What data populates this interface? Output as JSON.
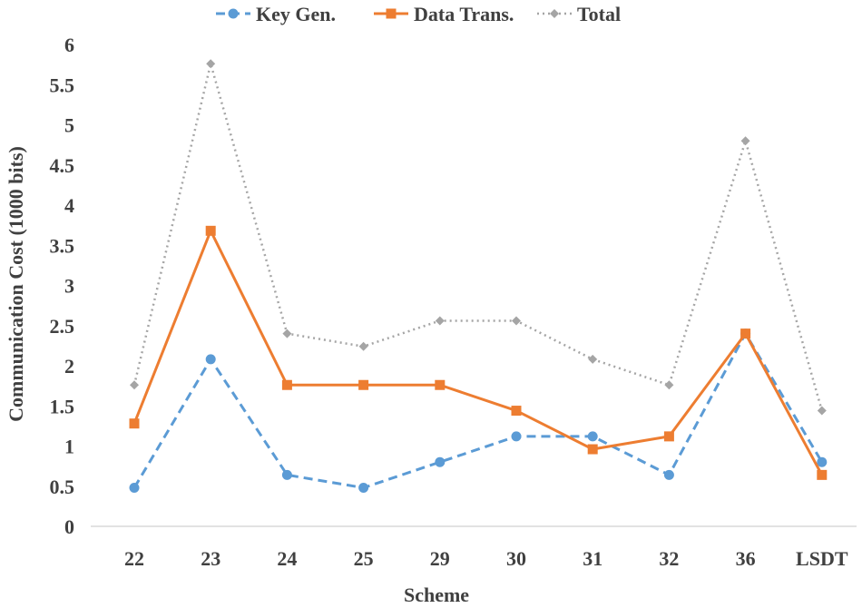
{
  "chart_data": {
    "type": "line",
    "xlabel": "Scheme",
    "ylabel": "Communication Cost (1000 bits)",
    "categories": [
      "22",
      "23",
      "24",
      "25",
      "29",
      "30",
      "31",
      "32",
      "36",
      "LSDT"
    ],
    "ylim": [
      0,
      6
    ],
    "yticks": [
      "0",
      "0.5",
      "1",
      "1.5",
      "2",
      "2.5",
      "3",
      "3.5",
      "4",
      "4.5",
      "5",
      "5.5",
      "6"
    ],
    "grid": false,
    "legend_position": "top",
    "series": [
      {
        "name": "Key Gen.",
        "color": "#5B9BD5",
        "line_style": "dashed",
        "marker": "circle",
        "values": [
          0.48,
          2.08,
          0.64,
          0.48,
          0.8,
          1.12,
          1.12,
          0.64,
          2.4,
          0.8
        ]
      },
      {
        "name": "Data Trans.",
        "color": "#ED7D31",
        "line_style": "solid",
        "marker": "square",
        "values": [
          1.28,
          3.68,
          1.76,
          1.76,
          1.76,
          1.44,
          0.96,
          1.12,
          2.4,
          0.64
        ]
      },
      {
        "name": "Total",
        "color": "#A5A5A5",
        "line_style": "dotted",
        "marker": "diamond",
        "values": [
          1.76,
          5.76,
          2.4,
          2.24,
          2.56,
          2.56,
          2.08,
          1.76,
          4.8,
          1.44
        ]
      }
    ]
  }
}
